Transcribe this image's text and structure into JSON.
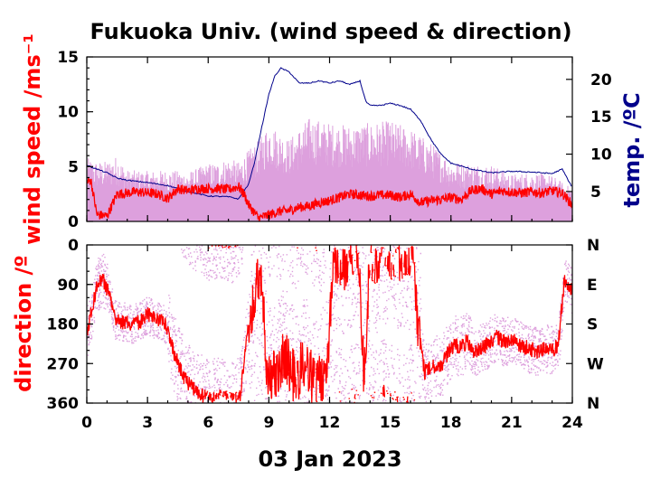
{
  "chart_data": [
    {
      "type": "line",
      "title": "Fukuoka Univ. (wind speed & direction)",
      "xlabel": "03 Jan 2023",
      "ylabel": "wind speed /ms⁻¹",
      "ylabel_right": "temp. /ºC",
      "xlim": [
        0,
        24
      ],
      "ylim": [
        0,
        15
      ],
      "ylim_right": [
        1,
        23
      ],
      "x_ticks": [
        "0",
        "3",
        "6",
        "9",
        "12",
        "15",
        "18",
        "21",
        "24"
      ],
      "y_ticks": [
        "0",
        "5",
        "10",
        "15"
      ],
      "y_ticks_right": [
        "5",
        "10",
        "15",
        "20"
      ],
      "colors": {
        "gust": "#dda0dd",
        "mean_speed": "#ff0000",
        "temperature": "#00008b"
      },
      "series": [
        {
          "name": "",
          "x": [
            0,
            0.5,
            1,
            1.5,
            2,
            3,
            4,
            5,
            6,
            6.5,
            7,
            7.5,
            8,
            8.5,
            9,
            10,
            11,
            12,
            13,
            14,
            15,
            16,
            17,
            18,
            19,
            20,
            21,
            22,
            23,
            24
          ],
          "values": [
            5.8,
            5.5,
            5.5,
            6.0,
            4.7,
            4.6,
            4.7,
            4.5,
            5.3,
            5.4,
            5.8,
            5.4,
            6.5,
            7.4,
            9.0,
            7.5,
            9.5,
            9.0,
            8.8,
            9.0,
            9.2,
            8.5,
            7.2,
            5.5,
            5.3,
            5.2,
            4.3,
            4.5,
            4.2,
            3.0
          ]
        },
        {
          "name": "",
          "x": [
            0,
            0.2,
            0.5,
            1,
            1.5,
            2,
            2.5,
            3,
            3.5,
            4,
            4.5,
            5,
            5.5,
            6,
            6.5,
            7,
            7.5,
            7.8,
            8,
            8.5,
            9,
            9.5,
            10,
            10.5,
            11,
            11.5,
            12,
            12.5,
            13,
            13.5,
            14,
            14.5,
            15,
            15.5,
            16,
            16.5,
            17,
            17.5,
            18,
            18.5,
            19,
            19.5,
            20,
            20.5,
            21,
            21.5,
            22,
            22.5,
            23,
            23.5,
            24
          ],
          "values": [
            3.5,
            3.8,
            0.6,
            0.5,
            2.5,
            2.6,
            2.7,
            2.6,
            2.5,
            2.1,
            3.0,
            2.8,
            3.0,
            3.0,
            3.0,
            2.9,
            3.2,
            2.4,
            1.5,
            0.3,
            0.6,
            0.9,
            1.0,
            1.3,
            1.4,
            1.7,
            1.9,
            2.2,
            2.5,
            2.4,
            2.3,
            2.4,
            2.4,
            2.2,
            2.5,
            1.7,
            1.9,
            2.0,
            2.2,
            2.0,
            2.8,
            3.0,
            2.5,
            2.8,
            2.7,
            2.6,
            2.7,
            2.6,
            2.8,
            2.6,
            1.5
          ]
        },
        {
          "name": "",
          "axis": "right",
          "x": [
            0,
            0.5,
            1,
            1.5,
            2,
            3,
            4,
            5,
            6,
            7,
            7.5,
            8,
            8.3,
            8.6,
            9,
            9.3,
            9.6,
            10,
            10.5,
            11,
            11.5,
            12,
            12.5,
            13,
            13.5,
            13.8,
            14,
            14.5,
            15,
            15.5,
            16,
            16.5,
            17,
            17.5,
            18,
            19,
            20,
            21,
            22,
            23,
            23.5,
            24
          ],
          "values": [
            8.5,
            8.0,
            7.5,
            6.8,
            6.5,
            6.2,
            5.8,
            5.0,
            4.4,
            4.3,
            4.0,
            6.0,
            9.0,
            13.0,
            18.0,
            20.5,
            21.5,
            21.0,
            19.5,
            19.5,
            19.8,
            19.5,
            19.8,
            19.3,
            19.8,
            17.0,
            16.5,
            16.5,
            16.8,
            16.5,
            16.0,
            14.5,
            12.0,
            10.0,
            8.8,
            8.0,
            7.5,
            7.7,
            7.6,
            7.4,
            8.0,
            5.5
          ]
        }
      ]
    },
    {
      "type": "scatter",
      "xlabel": "03 Jan 2023",
      "ylabel": "direction /º",
      "xlim": [
        0,
        24
      ],
      "ylim": [
        360,
        0
      ],
      "x_ticks": [
        "0",
        "3",
        "6",
        "9",
        "12",
        "15",
        "18",
        "21",
        "24"
      ],
      "y_ticks": [
        "0",
        "90",
        "180",
        "270",
        "360"
      ],
      "y_ticks_right": [
        "N",
        "E",
        "S",
        "W",
        "N"
      ],
      "colors": {
        "instant": "#dda0dd",
        "mean": "#ff0000"
      },
      "series": [
        {
          "name": "",
          "x": [
            0,
            0.25,
            0.5,
            0.8,
            1.1,
            1.4,
            1.8,
            2.2,
            2.6,
            3.0,
            3.5,
            3.9,
            4.2,
            4.5,
            4.8,
            5.1,
            5.4,
            5.7,
            6.0,
            6.4,
            6.8,
            7.2,
            7.6,
            8.0,
            8.3,
            8.6,
            8.9,
            9.2,
            9.5,
            9.8,
            10.1,
            10.4,
            10.7,
            11.0,
            11.3,
            11.6,
            11.9,
            12.2,
            12.5,
            12.8,
            13.1,
            13.4,
            13.7,
            14.0,
            14.3,
            14.6,
            14.9,
            15.2,
            15.5,
            15.8,
            16.1,
            16.4,
            16.7,
            17.0,
            17.3,
            17.6,
            17.9,
            18.2,
            18.5,
            18.8,
            19.1,
            19.4,
            19.7,
            20.0,
            20.3,
            20.6,
            20.9,
            21.2,
            21.5,
            21.8,
            22.1,
            22.4,
            22.7,
            23.0,
            23.3,
            23.6,
            23.9
          ],
          "values": [
            200,
            150,
            90,
            80,
            110,
            170,
            175,
            180,
            175,
            160,
            170,
            180,
            230,
            270,
            300,
            320,
            330,
            340,
            350,
            345,
            350,
            355,
            340,
            180,
            120,
            60,
            280,
            300,
            280,
            250,
            290,
            310,
            260,
            280,
            330,
            300,
            270,
            40,
            30,
            50,
            20,
            10,
            300,
            20,
            40,
            10,
            30,
            20,
            40,
            50,
            10,
            200,
            290,
            280,
            275,
            270,
            240,
            230,
            230,
            220,
            245,
            235,
            230,
            215,
            210,
            220,
            215,
            220,
            230,
            235,
            240,
            245,
            235,
            240,
            230,
            80,
            100
          ]
        }
      ]
    }
  ]
}
